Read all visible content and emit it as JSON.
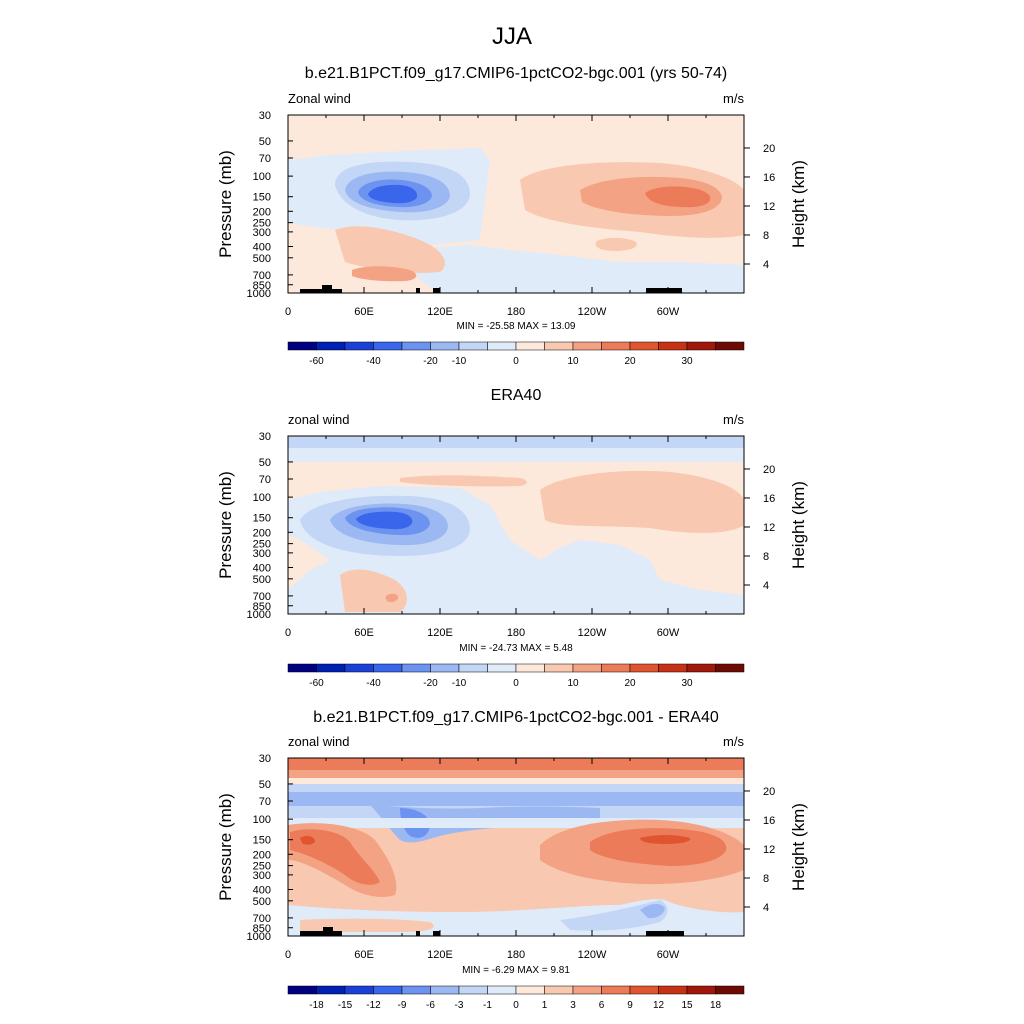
{
  "figure_title": "JJA",
  "chart_data": [
    {
      "type": "heatmap",
      "title": "b.e21.B1PCT.f09_g17.CMIP6-1pctCO2-bgc.001 (yrs 50-74)",
      "left_label": "Zonal wind",
      "right_label": "m/s",
      "ylabel": "Pressure (mb)",
      "ylabel_right": "Height (km)",
      "x_ticks": [
        "0",
        "60E",
        "120E",
        "180",
        "120W",
        "60W"
      ],
      "y_ticks": [
        "30",
        "50",
        "70",
        "100",
        "150",
        "200",
        "250",
        "300",
        "400",
        "500",
        "700",
        "850",
        "1000"
      ],
      "height_ticks": [
        "20",
        "16",
        "12",
        "8",
        "4"
      ],
      "stats": "MIN = -25.58  MAX =  13.09",
      "colorbar_labels": [
        "-60",
        "-40",
        "-20",
        "-10",
        "0",
        "10",
        "20",
        "30"
      ],
      "features": [
        {
          "name": "easterly core",
          "lon": 70,
          "pressure_mb": 150,
          "value": -25.58
        },
        {
          "name": "westerly core",
          "lon": 290,
          "pressure_mb": 150,
          "value": 13.09
        }
      ]
    },
    {
      "type": "heatmap",
      "title": "ERA40",
      "left_label": "zonal wind",
      "right_label": "m/s",
      "ylabel": "Pressure (mb)",
      "ylabel_right": "Height (km)",
      "x_ticks": [
        "0",
        "60E",
        "120E",
        "180",
        "120W",
        "60W"
      ],
      "y_ticks": [
        "30",
        "50",
        "70",
        "100",
        "150",
        "200",
        "250",
        "300",
        "400",
        "500",
        "700",
        "850",
        "1000"
      ],
      "height_ticks": [
        "20",
        "16",
        "12",
        "8",
        "4"
      ],
      "stats": "MIN = -24.73  MAX =   5.48",
      "colorbar_labels": [
        "-60",
        "-40",
        "-20",
        "-10",
        "0",
        "10",
        "20",
        "30"
      ],
      "features": [
        {
          "name": "easterly core",
          "lon": 70,
          "pressure_mb": 150,
          "value": -24.73
        },
        {
          "name": "westerly maximum",
          "lon": 290,
          "pressure_mb": 100,
          "value": 5.48
        }
      ]
    },
    {
      "type": "heatmap",
      "title": "b.e21.B1PCT.f09_g17.CMIP6-1pctCO2-bgc.001 - ERA40",
      "left_label": "zonal wind",
      "right_label": "m/s",
      "ylabel": "Pressure (mb)",
      "ylabel_right": "Height (km)",
      "x_ticks": [
        "0",
        "60E",
        "120E",
        "180",
        "120W",
        "60W"
      ],
      "y_ticks": [
        "30",
        "50",
        "70",
        "100",
        "150",
        "200",
        "250",
        "300",
        "400",
        "500",
        "700",
        "850",
        "1000"
      ],
      "height_ticks": [
        "20",
        "16",
        "12",
        "8",
        "4"
      ],
      "stats": "MIN =  -6.29  MAX =   9.81",
      "colorbar_labels": [
        "-18",
        "-15",
        "-12",
        "-9",
        "-6",
        "-3",
        "-1",
        "0",
        "1",
        "3",
        "6",
        "9",
        "12",
        "15",
        "18"
      ],
      "features": [
        {
          "name": "stratospheric westerly bias",
          "lon": 180,
          "pressure_mb": 30,
          "value": 6
        },
        {
          "name": "negative bias band",
          "lon": 100,
          "pressure_mb": 100,
          "value": -6.29
        },
        {
          "name": "upper-tropospheric westerly bias",
          "lon": 290,
          "pressure_mb": 150,
          "value": 9.81
        }
      ]
    }
  ],
  "colors": {
    "scale_main": [
      "#000081",
      "#0020b3",
      "#1a40d8",
      "#3a66ec",
      "#6d93f1",
      "#9cb8f3",
      "#c3d6f5",
      "#e0ebfa",
      "#fde8dc",
      "#f8c9b0",
      "#f3a383",
      "#ec7c59",
      "#e05530",
      "#c73217",
      "#a0180a",
      "#6e0a04"
    ],
    "scale_diff": [
      "#000081",
      "#0020b3",
      "#1a40d8",
      "#3a66ec",
      "#6d93f1",
      "#9cb8f3",
      "#c3d6f5",
      "#e0ebfa",
      "#fde8dc",
      "#f8c9b0",
      "#f3a383",
      "#ec7c59",
      "#e05530",
      "#c73217",
      "#a0180a",
      "#6e0a04"
    ]
  }
}
